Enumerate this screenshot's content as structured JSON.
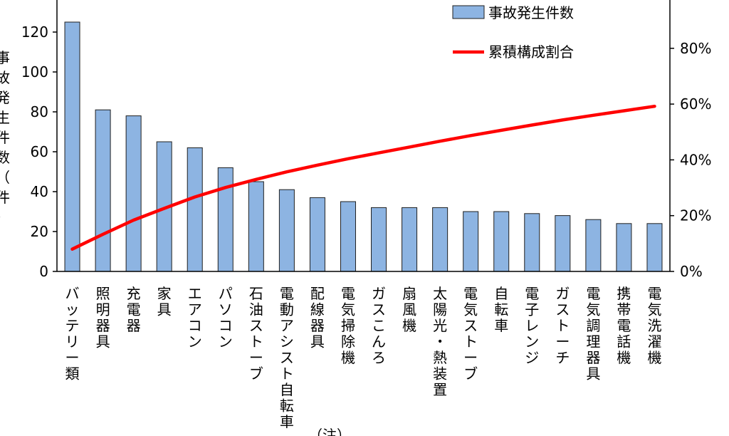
{
  "chart_data": {
    "type": "bar+line",
    "categories": [
      "バッテリー類",
      "照明器具",
      "充電器",
      "家具",
      "エアコン",
      "パソコン",
      "石油ストーブ",
      "電動アシスト自転車",
      "配線器具",
      "電気掃除機",
      "ガスこんろ",
      "扇風機",
      "太陽光・熱装置",
      "電気ストーブ",
      "自転車",
      "電子レンジ",
      "ガストーチ",
      "電気調理器具",
      "携帯電話機",
      "電気洗濯機"
    ],
    "series": [
      {
        "name": "事故発生件数",
        "type": "bar",
        "axis": "left",
        "color": "#8db4e2",
        "values": [
          125,
          81,
          78,
          65,
          62,
          52,
          45,
          41,
          37,
          35,
          32,
          32,
          32,
          30,
          30,
          29,
          28,
          26,
          24,
          24
        ]
      },
      {
        "name": "累積構成割合",
        "type": "line",
        "axis": "right",
        "color": "#ff0000",
        "values": [
          8.0,
          13.3,
          18.4,
          22.6,
          26.7,
          30.1,
          33.0,
          35.7,
          38.1,
          40.4,
          42.5,
          44.6,
          46.7,
          48.7,
          50.6,
          52.5,
          54.3,
          56.0,
          57.6,
          59.2
        ]
      }
    ],
    "ylabel": "事故発生件数（件）",
    "ylim": [
      0,
      140
    ],
    "yticks": [
      "0",
      "20",
      "40",
      "60",
      "80",
      "100",
      "120"
    ],
    "y2lim": [
      0,
      100
    ],
    "y2ticks": [
      "0%",
      "20%",
      "40%",
      "60%",
      "80%"
    ],
    "legend": {
      "placement": "top-right",
      "entries": [
        "事故発生件数",
        "累積構成割合"
      ]
    },
    "grid": false,
    "partial_text": "（注）..."
  }
}
